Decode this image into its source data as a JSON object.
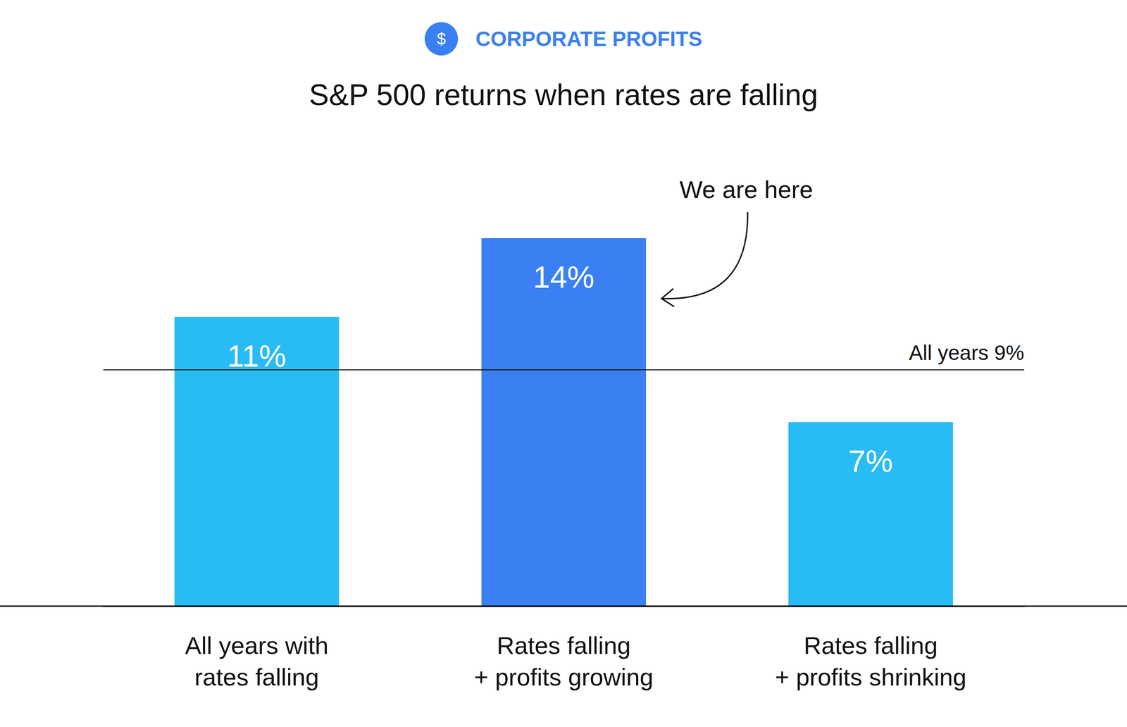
{
  "chart_data": {
    "type": "bar",
    "header": "CORPORATE PROFITS",
    "icon": "$",
    "title": "S&P 500 returns when rates are falling",
    "categories": [
      "All years with\nrates falling",
      "Rates falling\n+ profits growing",
      "Rates falling\n+ profits shrinking"
    ],
    "values": [
      11,
      14,
      7
    ],
    "value_labels": [
      "11%",
      "14%",
      "7%"
    ],
    "data_labels": true,
    "colors": [
      "#29bbf5",
      "#3a80f2",
      "#29bbf5"
    ],
    "ylim": [
      0,
      14
    ],
    "tick_labels": "x",
    "grid": false,
    "reference_line": {
      "value": 9,
      "label": "All years 9%"
    },
    "annotations": [
      {
        "text": "We are here",
        "category": "Rates falling\n+ profits growing"
      }
    ]
  }
}
